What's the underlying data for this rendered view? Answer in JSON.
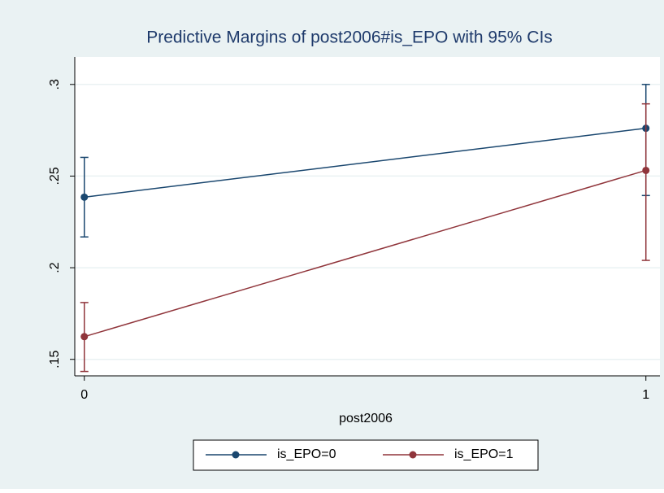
{
  "chart_data": {
    "type": "line",
    "title": "Predictive Margins of post2006#is_EPO with 95% CIs",
    "x_label": "post2006",
    "x": [
      0,
      1
    ],
    "series": [
      {
        "name": "is_EPO=0",
        "color": "#1a476f",
        "values": [
          0.2385,
          0.2761
        ],
        "lower": [
          0.2168,
          0.2394
        ],
        "upper": [
          0.2602,
          0.3
        ]
      },
      {
        "name": "is_EPO=1",
        "color": "#90353b",
        "values": [
          0.1624,
          0.2531
        ],
        "lower": [
          0.1434,
          0.204
        ],
        "upper": [
          0.181,
          0.2894
        ]
      }
    ],
    "xlim": [
      -0.017,
      1.025
    ],
    "xticks": [
      0,
      1
    ],
    "ylim": [
      0.141,
      0.315
    ],
    "yticks": [
      {
        "value": 0.15,
        "label": ".15"
      },
      {
        "value": 0.2,
        "label": ".2"
      },
      {
        "value": 0.25,
        "label": ".25"
      },
      {
        "value": 0.3,
        "label": ".3"
      }
    ],
    "grid": true
  }
}
